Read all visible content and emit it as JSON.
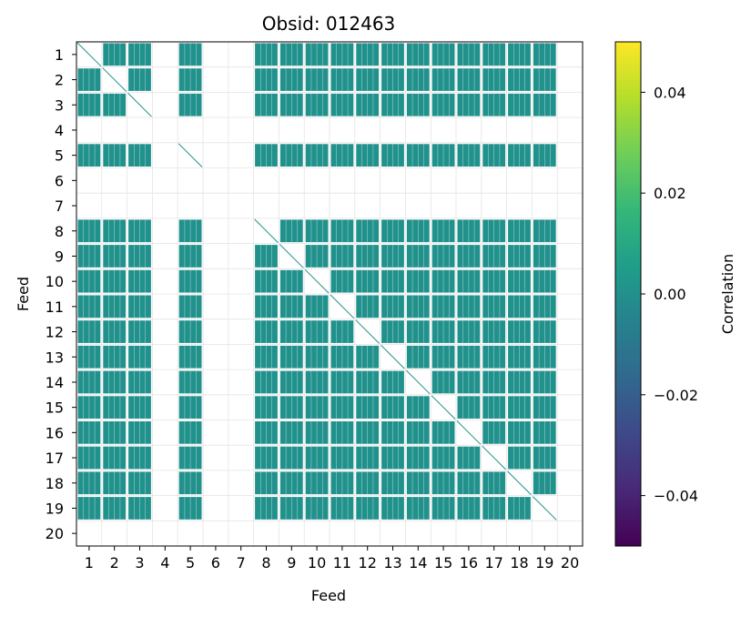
{
  "chart_data": {
    "type": "heatmap",
    "title": "Obsid: 012463",
    "xlabel": "Feed",
    "ylabel": "Feed",
    "x_ticks": [
      "1",
      "2",
      "3",
      "4",
      "5",
      "6",
      "7",
      "8",
      "9",
      "10",
      "11",
      "12",
      "13",
      "14",
      "15",
      "16",
      "17",
      "18",
      "19",
      "20"
    ],
    "y_ticks": [
      "1",
      "2",
      "3",
      "4",
      "5",
      "6",
      "7",
      "8",
      "9",
      "10",
      "11",
      "12",
      "13",
      "14",
      "15",
      "16",
      "17",
      "18",
      "19",
      "20"
    ],
    "grid": true,
    "cell_value": 0.0,
    "colormap": "viridis",
    "cell_color": "#21918c",
    "colorbar": {
      "label": "Correlation",
      "min": -0.05,
      "max": 0.05,
      "ticks": [
        0.04,
        0.02,
        0.0,
        -0.02,
        -0.04
      ],
      "tick_labels": [
        "0.04",
        "0.02",
        "0.00",
        "−0.02",
        "−0.04"
      ],
      "colors": [
        "#440154",
        "#482878",
        "#3e4989",
        "#31688e",
        "#26828e",
        "#1f9e89",
        "#35b779",
        "#6ece58",
        "#b5de2b",
        "#fde725"
      ]
    },
    "feeds_with_data": [
      "1",
      "2",
      "3",
      "5",
      "8",
      "9",
      "10",
      "11",
      "12",
      "13",
      "14",
      "15",
      "16",
      "17",
      "18",
      "19"
    ],
    "feeds_empty": [
      "4",
      "6",
      "7",
      "20"
    ]
  }
}
